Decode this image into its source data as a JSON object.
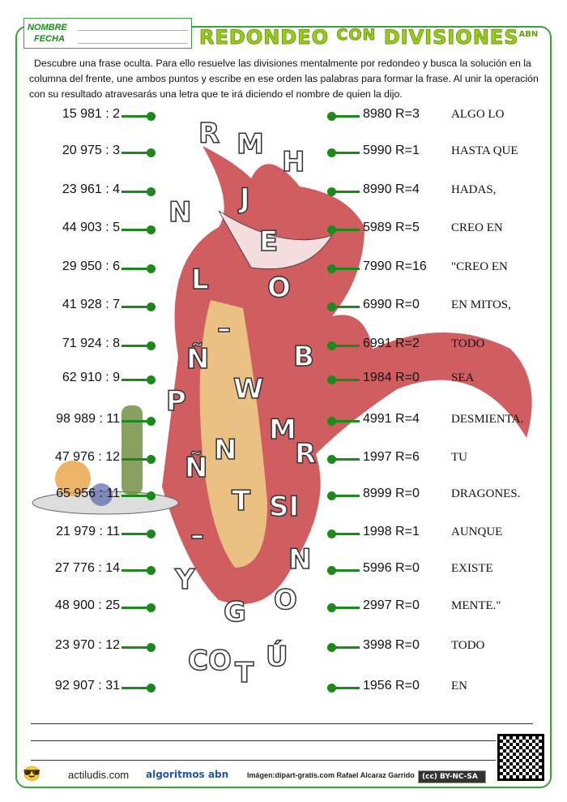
{
  "header": {
    "nombre": "NOMBRE",
    "fecha": "FECHA",
    "title_a": "REDONDEO",
    "title_con": "CON",
    "title_b": "DIVISIONES",
    "title_sup": "ABN"
  },
  "instructions": "Descubre una frase oculta. Para ello resuelve las divisiones mentalmente por redondeo y busca la solución en la columna del frente, une ambos puntos  y escribe en ese orden las palabras para formar la frase. Al unir la operación con su resultado atravesarás una letra que te irá diciendo el nombre de quien la dijo.",
  "operations": [
    "15 981 : 2",
    "20 975 : 3",
    "23 961 : 4",
    "44 903 : 5",
    "29 950 : 6",
    "41 928 : 7",
    "71 924 : 8",
    "62 910 : 9",
    "98 989 : 11",
    "47 976 : 12",
    "65 956 : 11",
    "21 979 : 11",
    "27 776 : 14",
    "48 900 : 25",
    "23 970 : 12",
    "92 907 : 31"
  ],
  "results": [
    {
      "value": "8980 R=3",
      "word": "ALGO LO"
    },
    {
      "value": "5990 R=1",
      "word": "HASTA QUE"
    },
    {
      "value": "8990 R=4",
      "word": "HADAS,"
    },
    {
      "value": "5989 R=5",
      "word": "CREO EN"
    },
    {
      "value": "7990 R=16",
      "word": "\"CREO EN"
    },
    {
      "value": "6990 R=0",
      "word": "EN MITOS,"
    },
    {
      "value": "6991 R=2",
      "word": "TODO"
    },
    {
      "value": "1984 R=0",
      "word": "SEA"
    },
    {
      "value": "4991 R=4",
      "word": "DESMIENTA."
    },
    {
      "value": "1997 R=6",
      "word": "TU"
    },
    {
      "value": "8999 R=0",
      "word": "DRAGONES."
    },
    {
      "value": "1998 R=1",
      "word": "AUNQUE"
    },
    {
      "value": "5996 R=0",
      "word": "EXISTE"
    },
    {
      "value": "2997 R=0",
      "word": "MENTE.\""
    },
    {
      "value": "3998 R=0",
      "word": "TODO"
    },
    {
      "value": "1956 R=0",
      "word": "EN"
    }
  ],
  "letters": [
    "R",
    "M",
    "H",
    "N",
    "J",
    "E",
    "O",
    "L",
    "–",
    "B",
    "Ñ",
    "W",
    "P",
    "M",
    "R",
    "N",
    "Ñ",
    "T",
    "SI",
    "–",
    "N",
    "Y",
    "O",
    "G",
    "CO",
    "T",
    "Ú"
  ],
  "footer": {
    "site": "actiludis.com",
    "abn": "algoritmos abn",
    "credit": "Imágen:dipart-gratis.com Rafael Alcaraz Garrido",
    "license": "BY-NC-SA"
  },
  "colors": {
    "accent": "#1a8a1a",
    "title": "#9acd1a",
    "dragon": "#c0282b"
  }
}
